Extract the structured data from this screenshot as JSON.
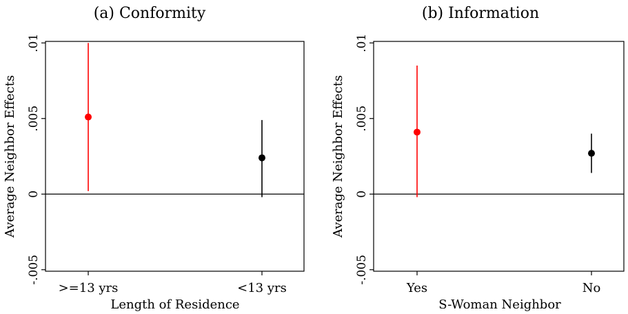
{
  "chart_data": [
    {
      "type": "scatter",
      "title": "(a) Conformity",
      "xlabel": "Length of Residence",
      "ylabel": "Average Neighbor Effects",
      "categories": [
        ">=13 yrs",
        "<13 yrs"
      ],
      "values": [
        0.0051,
        0.0024
      ],
      "ci_low": [
        0.0002,
        -0.0002
      ],
      "ci_high": [
        0.01,
        0.0049
      ],
      "colors": [
        "#ff0000",
        "#000000"
      ],
      "yticks": [
        ".01",
        ".005",
        "0",
        "-.005"
      ],
      "yticks_values": [
        0.01,
        0.005,
        0,
        -0.005
      ],
      "ylim": [
        -0.0051,
        0.0101
      ],
      "grid": false,
      "reference_line": 0
    },
    {
      "type": "scatter",
      "title": "(b) Information",
      "xlabel": "S-Woman Neighbor",
      "ylabel": "Average Neighbor Effects",
      "categories": [
        "Yes",
        "No"
      ],
      "values": [
        0.0041,
        0.0027
      ],
      "ci_low": [
        -0.0002,
        0.0014
      ],
      "ci_high": [
        0.0085,
        0.004
      ],
      "colors": [
        "#ff0000",
        "#000000"
      ],
      "yticks": [
        ".01",
        ".005",
        "0",
        "-.005"
      ],
      "yticks_values": [
        0.01,
        0.005,
        0,
        -0.005
      ],
      "ylim": [
        -0.0051,
        0.0101
      ],
      "grid": false,
      "reference_line": 0
    }
  ]
}
